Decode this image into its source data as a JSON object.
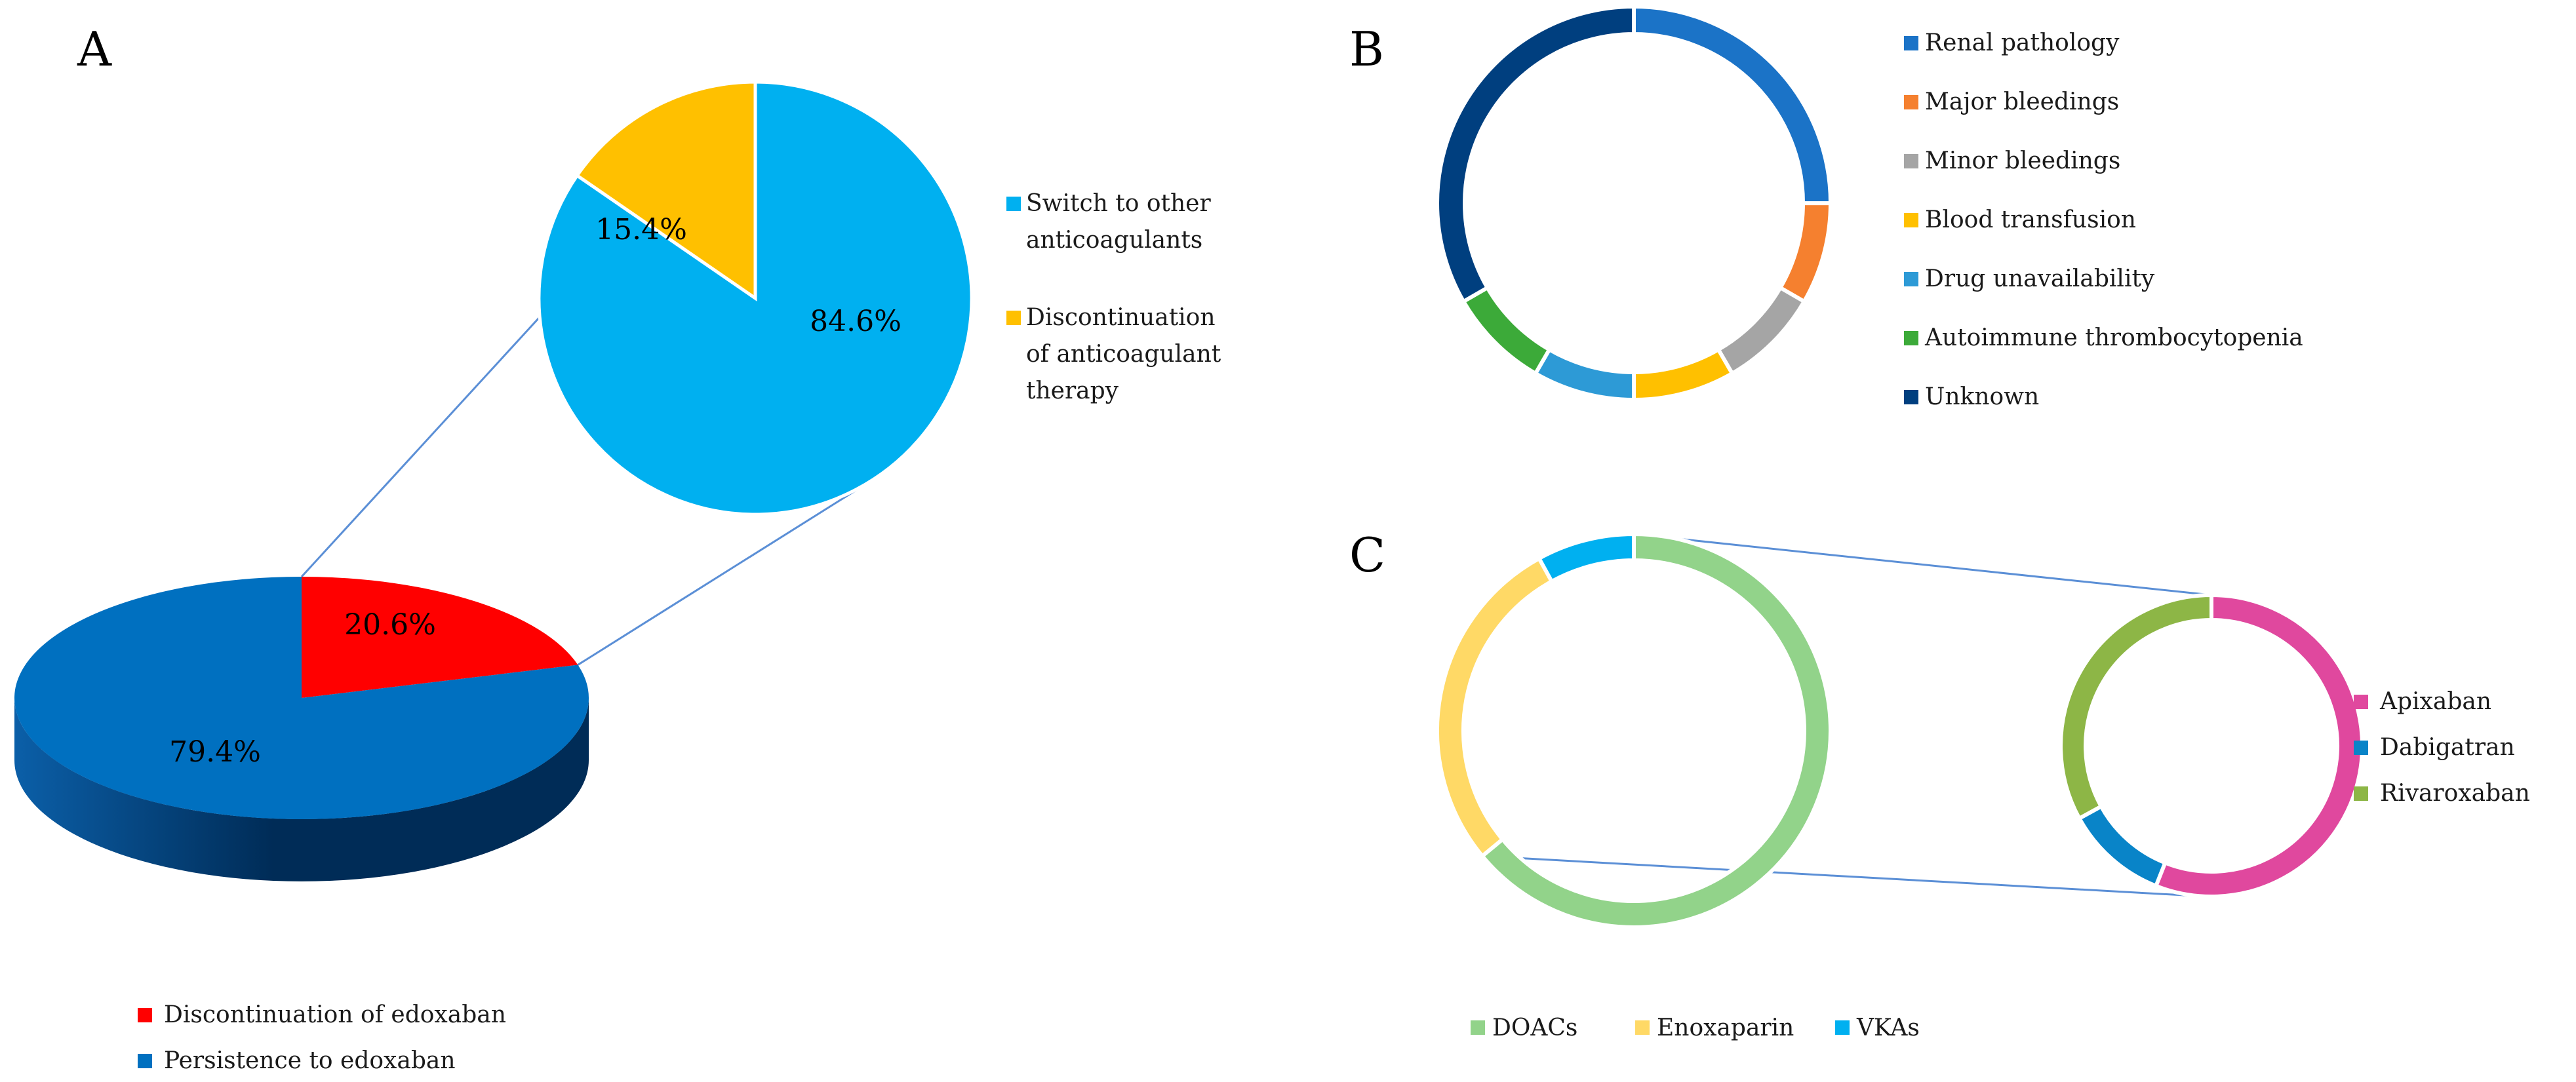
{
  "chart_data": [
    {
      "panel": "A",
      "type": "pie",
      "main_pie": {
        "slices": [
          {
            "name": "Discontinuation of edoxaban",
            "value": 20.6,
            "label": "20.6%",
            "color": "#ff0000"
          },
          {
            "name": "Persistence to edoxaban",
            "value": 79.4,
            "label": "79.4%",
            "color": "#0070c0"
          }
        ]
      },
      "sub_pie": {
        "slices": [
          {
            "name": "Switch to other anticoagulants",
            "value": 84.6,
            "label": "84.6%",
            "color": "#00b0f0"
          },
          {
            "name": "Discontinuation of anticoagulant therapy",
            "value": 15.4,
            "label": "15.4%",
            "color": "#ffc000"
          }
        ]
      },
      "legend_sub": [
        {
          "lines": [
            "Switch to other",
            "anticoagulants"
          ],
          "color": "#00b0f0"
        },
        {
          "lines": [
            "Discontinuation",
            "of anticoagulant",
            "therapy"
          ],
          "color": "#ffc000"
        }
      ],
      "legend_main": [
        {
          "label": "Discontinuation of edoxaban",
          "color": "#ff0000"
        },
        {
          "label": "Persistence to edoxaban",
          "color": "#0070c0"
        }
      ]
    },
    {
      "panel": "B",
      "type": "pie",
      "donut": true,
      "slices": [
        {
          "name": "Renal pathology",
          "value": 25,
          "color": "#1b73c7"
        },
        {
          "name": "Major bleedings",
          "value": 8.33,
          "color": "#f5802f"
        },
        {
          "name": "Minor bleedings",
          "value": 8.33,
          "color": "#a5a5a5"
        },
        {
          "name": "Blood transfusion",
          "value": 8.33,
          "color": "#ffc000"
        },
        {
          "name": "Drug unavailability",
          "value": 8.33,
          "color": "#2d9ad6"
        },
        {
          "name": "Autoimmune thrombocytopenia",
          "value": 8.33,
          "color": "#3caa39"
        },
        {
          "name": "Unknown",
          "value": 33.33,
          "color": "#003f7f"
        }
      ]
    },
    {
      "panel": "C",
      "type": "pie",
      "donut": true,
      "main_donut": {
        "slices": [
          {
            "name": "DOACs",
            "value": 64,
            "color": "#92d38a"
          },
          {
            "name": "Enoxaparin",
            "value": 28,
            "color": "#ffd966"
          },
          {
            "name": "VKAs",
            "value": 8,
            "color": "#00b0f0"
          }
        ]
      },
      "sub_donut": {
        "slices": [
          {
            "name": "Apixaban",
            "value": 56,
            "color": "#e0489e"
          },
          {
            "name": "Dabigatran",
            "value": 11,
            "color": "#0984c8"
          },
          {
            "name": "Rivaroxaban",
            "value": 33,
            "color": "#8db646"
          }
        ]
      },
      "legend_main": [
        {
          "label": "DOACs",
          "color": "#92d38a"
        },
        {
          "label": "Enoxaparin",
          "color": "#ffd966"
        },
        {
          "label": "VKAs",
          "color": "#00b0f0"
        }
      ],
      "legend_sub": [
        {
          "label": "Apixaban",
          "color": "#e0489e"
        },
        {
          "label": "Dabigatran",
          "color": "#0984c8"
        },
        {
          "label": "Rivaroxaban",
          "color": "#8db646"
        }
      ]
    }
  ],
  "colors": {
    "connector": "#5b8fd6",
    "pie_side_dark": "#002c57",
    "pie_side_light": "#0b5fa8"
  }
}
